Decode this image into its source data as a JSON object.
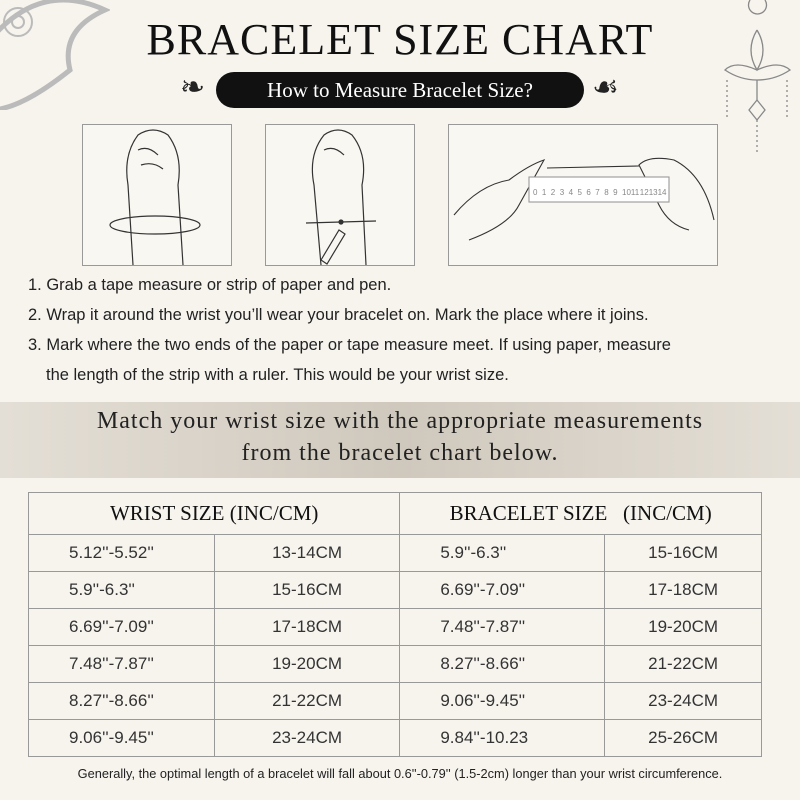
{
  "header": {
    "title": "BRACELET SIZE CHART",
    "subtitle": "How to Measure Bracelet Size?"
  },
  "illustrations": [
    {
      "icon": "hand-wrist-tape-icon"
    },
    {
      "icon": "hand-wrist-marked-icon"
    },
    {
      "icon": "hands-ruler-icon",
      "ruler_labels": [
        "0",
        "1",
        "2",
        "3",
        "4",
        "5",
        "6",
        "7",
        "8",
        "9",
        "10",
        "11",
        "12",
        "13",
        "14"
      ]
    }
  ],
  "steps": [
    "1. Grab a tape measure or strip of paper and pen.",
    "2. Wrap it around the wrist you’ll wear your bracelet on. Mark the place where it joins.",
    "3. Mark where the two ends of the paper or tape measure meet. If using paper, measure",
    "the length of the strip with a ruler. This would be your wrist size."
  ],
  "band": {
    "line1": "Match your wrist size with the appropriate measurements",
    "line2": "from the bracelet chart below."
  },
  "table": {
    "headers": [
      "WRIST SIZE (INC/CM)",
      "BRACELET SIZE   (INC/CM)"
    ],
    "rows": [
      [
        "5.12''-5.52''",
        "13-14CM",
        "5.9''-6.3''",
        "15-16CM"
      ],
      [
        "5.9''-6.3''",
        "15-16CM",
        "6.69''-7.09''",
        "17-18CM"
      ],
      [
        "6.69''-7.09''",
        "17-18CM",
        "7.48''-7.87''",
        "19-20CM"
      ],
      [
        "7.48''-7.87''",
        "19-20CM",
        "8.27''-8.66''",
        "21-22CM"
      ],
      [
        "8.27''-8.66''",
        "21-22CM",
        "9.06''-9.45''",
        "23-24CM"
      ],
      [
        "9.06''-9.45''",
        "23-24CM",
        "9.84''-10.23",
        "25-26CM"
      ]
    ]
  },
  "footer": "Generally, the optimal length of a bracelet will fall about 0.6''-0.79'' (1.5-2cm) longer than your wrist circumference."
}
